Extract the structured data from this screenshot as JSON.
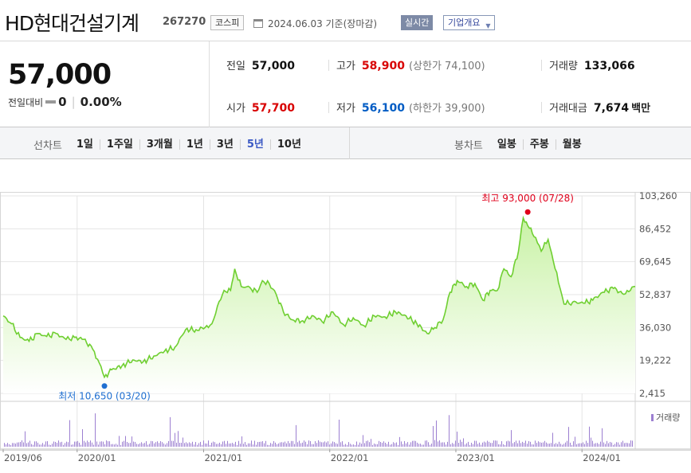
{
  "header": {
    "title": "HD현대건설기계",
    "code": "267270",
    "market": "코스피",
    "date": "2024.06.03  기준(장마감)",
    "realtime": "실시간",
    "company_info": "기업개요"
  },
  "summary": {
    "price": "57,000",
    "change_label": "전일대비",
    "change": "0",
    "change_pct": "0.00%",
    "prev_close": {
      "label": "전일",
      "value": "57,000"
    },
    "high": {
      "label": "고가",
      "value": "58,900",
      "sub": "(상한가 74,100)"
    },
    "volume": {
      "label": "거래량",
      "value": "133,066"
    },
    "open": {
      "label": "시가",
      "value": "57,700"
    },
    "low": {
      "label": "저가",
      "value": "56,100",
      "sub": "(하한가 39,900)"
    },
    "amount": {
      "label": "거래대금",
      "value": "7,674",
      "unit": "백만"
    }
  },
  "period_bar": {
    "line_label": "선차트",
    "line_options": [
      "1일",
      "1주일",
      "3개월",
      "1년",
      "3년",
      "5년",
      "10년"
    ],
    "active": "5년",
    "candle_label": "봉차트",
    "candle_options": [
      "일봉",
      "주봉",
      "월봉"
    ]
  },
  "colors": {
    "line": "#6fcf31",
    "area": "#c9f2a6",
    "high_marker": "#e0001b",
    "low_marker": "#1f6fd1",
    "volume_bar": "#9c7fd1",
    "active_tab": "#3b59c4"
  },
  "chart_data": {
    "type": "area",
    "y_ticks": [
      "103,260",
      "86,452",
      "69,645",
      "52,837",
      "36,030",
      "19,222",
      "2,415"
    ],
    "y_tick_values": [
      103260,
      86452,
      69645,
      52837,
      36030,
      19222,
      2415
    ],
    "ylim": [
      2415,
      103260
    ],
    "x_ticks": [
      "2019/06",
      "2020/01",
      "2021/01",
      "2022/01",
      "2023/01",
      "2024/01"
    ],
    "x_tick_dates": [
      "2019-06-01",
      "2020-01-01",
      "2021-01-01",
      "2022-01-01",
      "2023-01-01",
      "2024-01-01"
    ],
    "xlim": [
      "2019-06-01",
      "2024-06-03"
    ],
    "high_label": "최고 93,000 (07/28)",
    "high_value": 93000,
    "high_date": "2023-07-28",
    "low_label": "최저 10,650 (03/20)",
    "low_value": 10650,
    "low_date": "2020-03-20",
    "volume_label": "거래량",
    "series": [
      {
        "values": [
          [
            "2019-06-01",
            42000
          ],
          [
            "2019-06-25",
            38000
          ],
          [
            "2019-07-20",
            31000
          ],
          [
            "2019-08-15",
            29000
          ],
          [
            "2019-09-10",
            33000
          ],
          [
            "2019-10-05",
            31500
          ],
          [
            "2019-11-01",
            33000
          ],
          [
            "2019-11-30",
            30000
          ],
          [
            "2019-12-25",
            31000
          ],
          [
            "2020-01-20",
            30000
          ],
          [
            "2020-02-15",
            25000
          ],
          [
            "2020-03-05",
            18000
          ],
          [
            "2020-03-20",
            10650
          ],
          [
            "2020-04-10",
            14500
          ],
          [
            "2020-05-10",
            16500
          ],
          [
            "2020-06-10",
            19500
          ],
          [
            "2020-07-10",
            18500
          ],
          [
            "2020-08-10",
            21500
          ],
          [
            "2020-09-10",
            24000
          ],
          [
            "2020-10-10",
            26000
          ],
          [
            "2020-11-10",
            35000
          ],
          [
            "2020-12-10",
            35000
          ],
          [
            "2021-01-05",
            36000
          ],
          [
            "2021-01-25",
            38000
          ],
          [
            "2021-02-10",
            47000
          ],
          [
            "2021-03-01",
            55000
          ],
          [
            "2021-03-20",
            55000
          ],
          [
            "2021-04-01",
            66000
          ],
          [
            "2021-04-20",
            57000
          ],
          [
            "2021-05-15",
            56500
          ],
          [
            "2021-06-05",
            54000
          ],
          [
            "2021-06-20",
            60000
          ],
          [
            "2021-07-10",
            58500
          ],
          [
            "2021-07-30",
            53000
          ],
          [
            "2021-08-20",
            44000
          ],
          [
            "2021-09-15",
            40000
          ],
          [
            "2021-10-15",
            39500
          ],
          [
            "2021-11-15",
            42000
          ],
          [
            "2021-12-10",
            39000
          ],
          [
            "2022-01-10",
            44000
          ],
          [
            "2022-02-10",
            37500
          ],
          [
            "2022-03-10",
            41000
          ],
          [
            "2022-04-10",
            37000
          ],
          [
            "2022-05-10",
            42000
          ],
          [
            "2022-06-10",
            41500
          ],
          [
            "2022-07-10",
            44000
          ],
          [
            "2022-08-10",
            42000
          ],
          [
            "2022-09-10",
            38000
          ],
          [
            "2022-10-10",
            33000
          ],
          [
            "2022-11-01",
            36000
          ],
          [
            "2022-11-25",
            40000
          ],
          [
            "2022-12-15",
            54000
          ],
          [
            "2023-01-05",
            60000
          ],
          [
            "2023-02-01",
            57000
          ],
          [
            "2023-02-25",
            58500
          ],
          [
            "2023-03-20",
            50000
          ],
          [
            "2023-04-10",
            55000
          ],
          [
            "2023-05-01",
            55000
          ],
          [
            "2023-05-20",
            66000
          ],
          [
            "2023-06-10",
            62000
          ],
          [
            "2023-07-01",
            75000
          ],
          [
            "2023-07-15",
            92000
          ],
          [
            "2023-07-28",
            88000
          ],
          [
            "2023-08-20",
            82000
          ],
          [
            "2023-09-05",
            75000
          ],
          [
            "2023-09-25",
            81000
          ],
          [
            "2023-10-10",
            70000
          ],
          [
            "2023-10-25",
            59000
          ],
          [
            "2023-11-10",
            48000
          ],
          [
            "2023-12-05",
            49000
          ],
          [
            "2024-01-05",
            48500
          ],
          [
            "2024-02-01",
            50000
          ],
          [
            "2024-03-01",
            54000
          ],
          [
            "2024-04-01",
            56000
          ],
          [
            "2024-05-01",
            53000
          ],
          [
            "2024-05-20",
            55000
          ],
          [
            "2024-06-03",
            57000
          ]
        ]
      }
    ]
  }
}
